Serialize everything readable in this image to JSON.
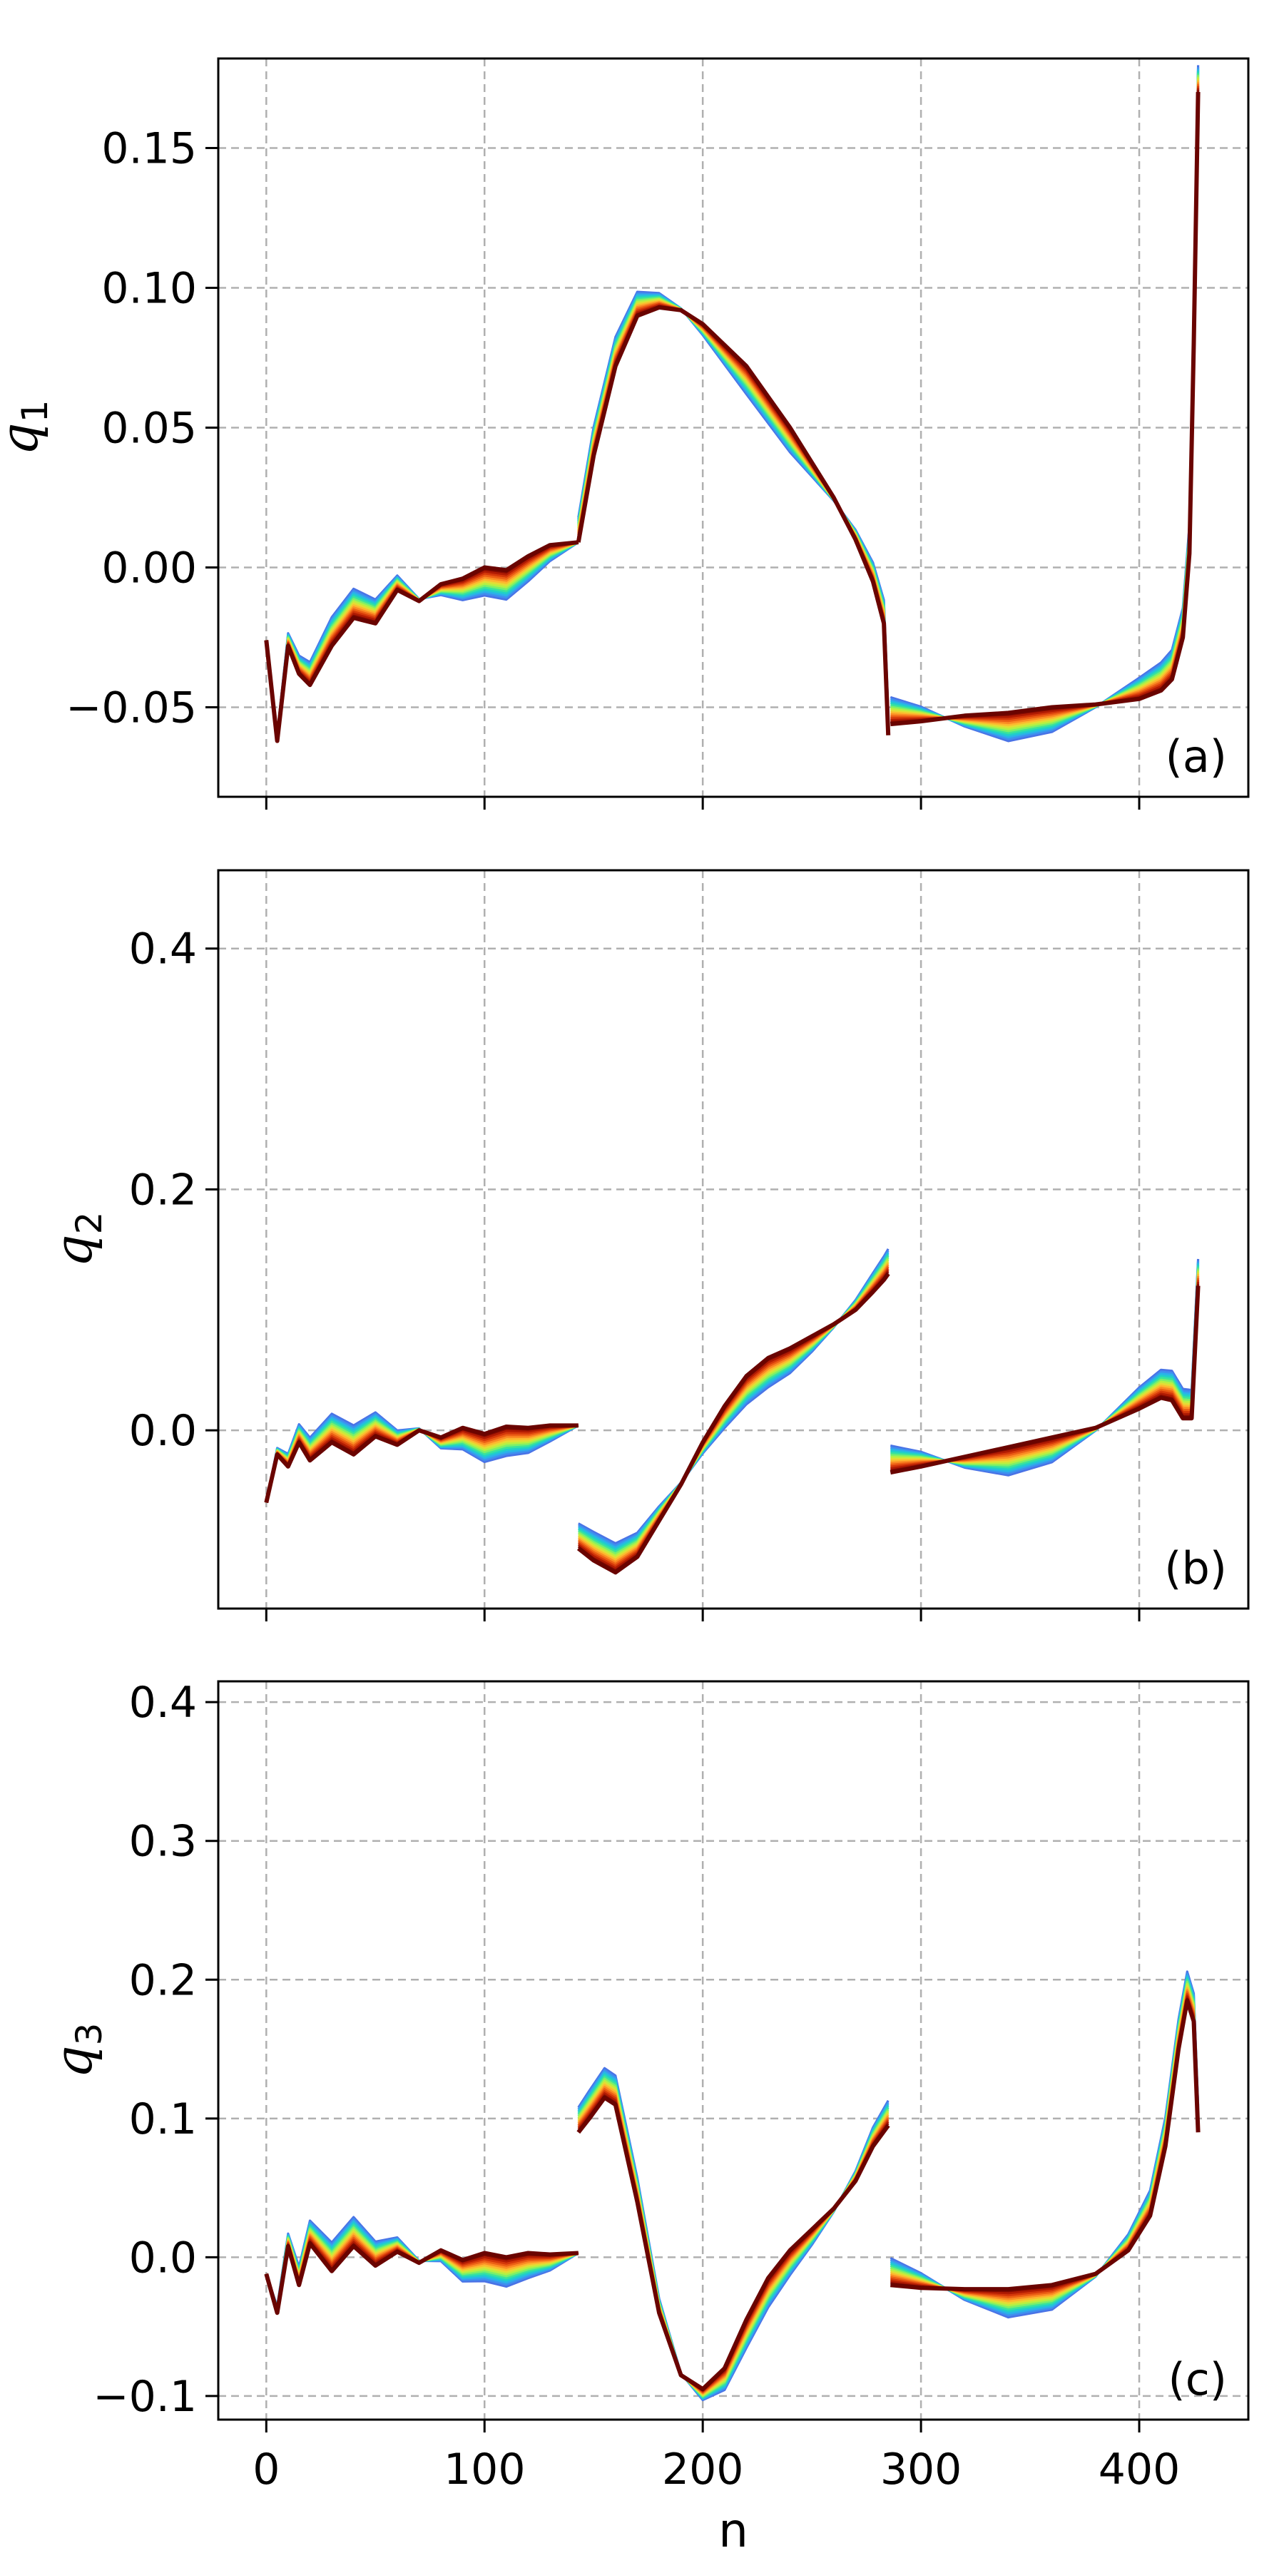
{
  "chart_data": [
    {
      "type": "line",
      "panel": "(a)",
      "ylabel": "q",
      "ylabel_sub": "1",
      "xlabel": "",
      "xlim": [
        -22,
        450
      ],
      "ylim": [
        -0.082,
        0.182
      ],
      "xticks": [
        0,
        100,
        200,
        300,
        400
      ],
      "yticks": [
        -0.05,
        0.0,
        0.05,
        0.1,
        0.15
      ],
      "ytick_labels": [
        "−0.05",
        "0.00",
        "0.05",
        "0.10",
        "0.15"
      ],
      "grid": true,
      "colormap": "turbo (blue to dark red), many curves",
      "series": [
        {
          "name": "",
          "segment": 1,
          "x": [
            0,
            5,
            10,
            15,
            20,
            30,
            40,
            50,
            60,
            70,
            80,
            90,
            100,
            110,
            120,
            130,
            143
          ],
          "y": [
            -0.026,
            -0.062,
            -0.028,
            -0.038,
            -0.042,
            -0.028,
            -0.018,
            -0.02,
            -0.008,
            -0.012,
            -0.006,
            -0.004,
            0.0,
            -0.001,
            0.004,
            0.008,
            0.009
          ]
        },
        {
          "name": "",
          "segment": 2,
          "x": [
            143,
            150,
            160,
            170,
            180,
            190,
            200,
            220,
            240,
            260,
            270,
            278,
            283,
            285
          ],
          "y": [
            0.009,
            0.04,
            0.072,
            0.09,
            0.093,
            0.092,
            0.087,
            0.072,
            0.05,
            0.025,
            0.01,
            -0.005,
            -0.02,
            -0.06
          ]
        },
        {
          "name": "",
          "segment": 3,
          "x": [
            286,
            300,
            320,
            340,
            360,
            380,
            400,
            410,
            415,
            420,
            423,
            425,
            427
          ],
          "y": [
            -0.056,
            -0.055,
            -0.053,
            -0.052,
            -0.05,
            -0.049,
            -0.047,
            -0.044,
            -0.04,
            -0.025,
            0.005,
            0.08,
            0.17
          ]
        }
      ]
    },
    {
      "type": "line",
      "panel": "(b)",
      "ylabel": "q",
      "ylabel_sub": "2",
      "xlabel": "",
      "xlim": [
        -22,
        450
      ],
      "ylim": [
        -0.148,
        0.465
      ],
      "xticks": [
        0,
        100,
        200,
        300,
        400
      ],
      "yticks": [
        0.0,
        0.2,
        0.4
      ],
      "ytick_labels": [
        "0.0",
        "0.2",
        "0.4"
      ],
      "grid": true,
      "colormap": "turbo (blue to dark red), many curves",
      "series": [
        {
          "name": "",
          "segment": 1,
          "x": [
            0,
            5,
            10,
            15,
            20,
            30,
            40,
            50,
            60,
            70,
            80,
            90,
            100,
            110,
            120,
            130,
            143
          ],
          "y": [
            -0.06,
            -0.02,
            -0.03,
            -0.01,
            -0.025,
            -0.01,
            -0.02,
            -0.005,
            -0.012,
            0.0,
            -0.006,
            0.002,
            -0.003,
            0.003,
            0.002,
            0.004,
            0.004
          ]
        },
        {
          "name": "",
          "segment": 2,
          "x": [
            143,
            150,
            160,
            170,
            180,
            190,
            200,
            210,
            220,
            230,
            240,
            250,
            260,
            270,
            278,
            283,
            285
          ],
          "y": [
            -0.098,
            -0.108,
            -0.118,
            -0.105,
            -0.075,
            -0.045,
            -0.01,
            0.02,
            0.045,
            0.06,
            0.068,
            0.078,
            0.088,
            0.1,
            0.115,
            0.125,
            0.13
          ]
        },
        {
          "name": "",
          "segment": 3,
          "x": [
            286,
            300,
            320,
            340,
            360,
            380,
            400,
            410,
            415,
            420,
            424,
            427
          ],
          "y": [
            -0.035,
            -0.03,
            -0.022,
            -0.014,
            -0.006,
            0.002,
            0.018,
            0.027,
            0.025,
            0.01,
            0.01,
            0.12
          ]
        }
      ]
    },
    {
      "type": "line",
      "panel": "(c)",
      "ylabel": "q",
      "ylabel_sub": "3",
      "xlabel": "n",
      "xlim": [
        -22,
        450
      ],
      "ylim": [
        -0.117,
        0.415
      ],
      "xticks": [
        0,
        100,
        200,
        300,
        400
      ],
      "yticks": [
        -0.1,
        0.0,
        0.1,
        0.2,
        0.3,
        0.4
      ],
      "ytick_labels": [
        "−0.1",
        "0.0",
        "0.1",
        "0.2",
        "0.3",
        "0.4"
      ],
      "grid": true,
      "colormap": "turbo (blue to dark red), many curves",
      "series": [
        {
          "name": "",
          "segment": 1,
          "x": [
            0,
            5,
            10,
            15,
            20,
            30,
            40,
            50,
            60,
            70,
            80,
            90,
            100,
            110,
            120,
            130,
            143
          ],
          "y": [
            -0.012,
            -0.04,
            0.008,
            -0.02,
            0.01,
            -0.01,
            0.008,
            -0.006,
            0.004,
            -0.004,
            0.005,
            -0.002,
            0.003,
            0.0,
            0.003,
            0.002,
            0.003
          ]
        },
        {
          "name": "",
          "segment": 2,
          "x": [
            143,
            148,
            155,
            160,
            170,
            180,
            190,
            200,
            210,
            220,
            230,
            240,
            250,
            260,
            270,
            278,
            285
          ],
          "y": [
            0.09,
            0.1,
            0.115,
            0.11,
            0.04,
            -0.04,
            -0.085,
            -0.095,
            -0.08,
            -0.045,
            -0.015,
            0.005,
            0.02,
            0.035,
            0.055,
            0.08,
            0.095
          ]
        },
        {
          "name": "",
          "segment": 3,
          "x": [
            286,
            300,
            320,
            340,
            360,
            380,
            395,
            405,
            412,
            418,
            422,
            425,
            427
          ],
          "y": [
            -0.02,
            -0.022,
            -0.023,
            -0.023,
            -0.02,
            -0.012,
            0.005,
            0.03,
            0.08,
            0.15,
            0.185,
            0.17,
            0.09
          ]
        }
      ]
    }
  ]
}
